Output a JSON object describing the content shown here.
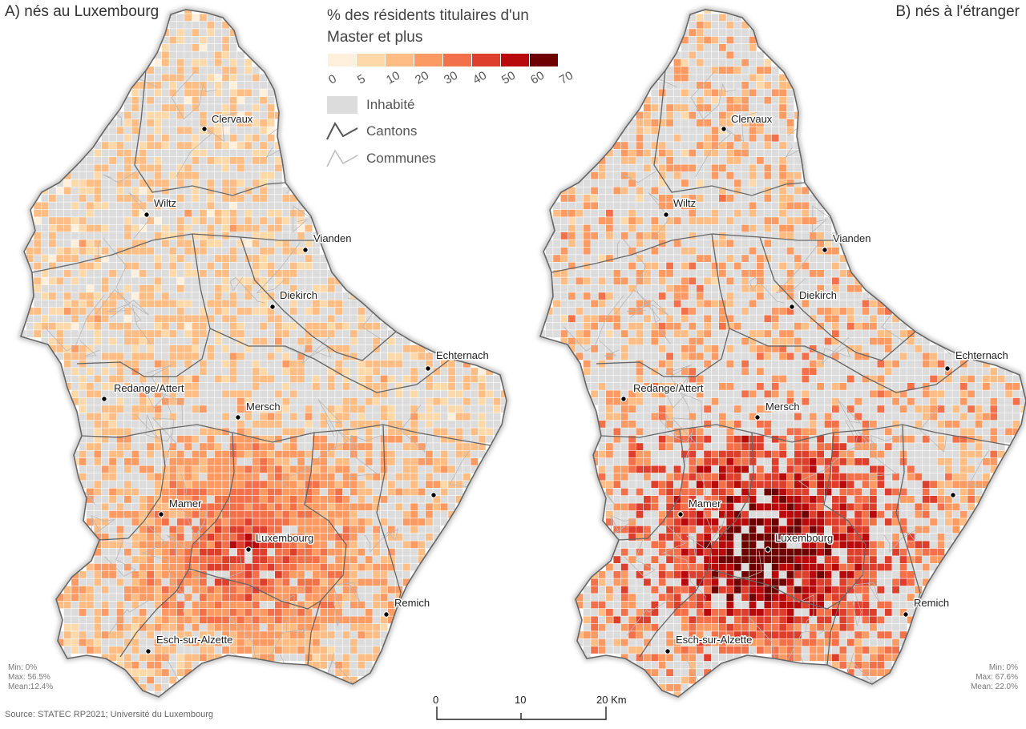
{
  "panels": [
    {
      "title": "A) nés au Luxembourg",
      "stats": [
        "Min: 0%",
        "Max: 56.5%",
        "Mean:12.4%"
      ],
      "cities": [
        {
          "name": "Clervaux"
        },
        {
          "name": "Wiltz"
        },
        {
          "name": "Vianden"
        },
        {
          "name": "Diekirch"
        },
        {
          "name": "Echternach"
        },
        {
          "name": "Redange/Attert"
        },
        {
          "name": "Mersch"
        },
        {
          "name": "Mamer"
        },
        {
          "name": "Luxembourg"
        },
        {
          "name": "Remich"
        },
        {
          "name": "Esch-sur-Alzette"
        }
      ]
    },
    {
      "title": "B) nés à l'étranger",
      "stats": [
        "Min: 0%",
        "Max: 67.6%",
        "Mean: 22.0%"
      ],
      "cities": [
        {
          "name": "Clervaux"
        },
        {
          "name": "Wiltz"
        },
        {
          "name": "Vianden"
        },
        {
          "name": "Diekirch"
        },
        {
          "name": "Echternach"
        },
        {
          "name": "Redange/Attert"
        },
        {
          "name": "Mersch"
        },
        {
          "name": "Mamer"
        },
        {
          "name": "Luxembourg"
        },
        {
          "name": "Remich"
        },
        {
          "name": "Esch-sur-Alzette"
        }
      ]
    }
  ],
  "legend": {
    "title_line1": "% des résidents titulaires d'un",
    "title_line2": "Master et plus",
    "breaks": [
      "0",
      "5",
      "10",
      "20",
      "30",
      "40",
      "50",
      "60",
      "70"
    ],
    "colors": [
      "#fef0dc",
      "#fdd9a9",
      "#fdbd84",
      "#fc9a63",
      "#f2704a",
      "#dd3f2c",
      "#b80a0a",
      "#6e0000"
    ],
    "uninhabited_label": "Inhabité",
    "uninhabited_color": "#dcdcdc",
    "cantons_label": "Cantons",
    "communes_label": "Communes"
  },
  "scale_bar": {
    "labels": [
      "0",
      "10",
      "20 Km"
    ]
  },
  "source": "Source: STATEC RP2021; Université du Luxembourg"
}
